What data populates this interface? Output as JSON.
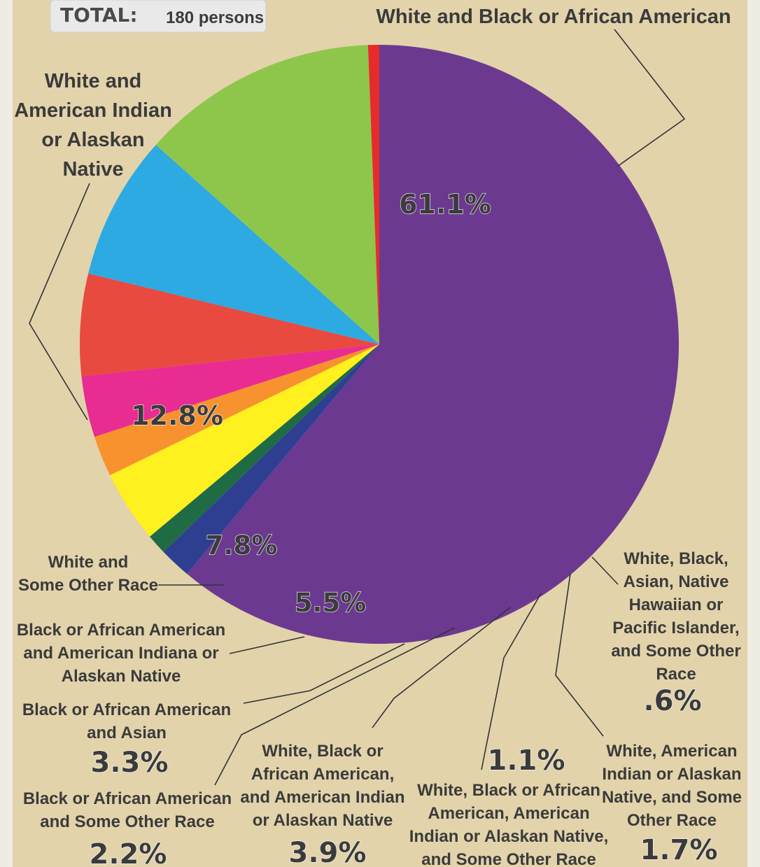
{
  "total": {
    "label": "TOTAL:",
    "value": "180 persons"
  },
  "colors": {
    "panel": "#e2d3ab",
    "page": "#efece3",
    "text": "#3b3b3b"
  },
  "chart_data": {
    "type": "pie",
    "start_angle_deg": -90,
    "slices": [
      {
        "value": 61.1,
        "pct_label": "61.1%",
        "color": "#6b3a90",
        "label_lines": [
          "White and Black or African American"
        ]
      },
      {
        "value": 1.7,
        "pct_label": "1.7%",
        "color": "#2e3f92",
        "label_lines": [
          "White, American",
          "Indian or Alaskan",
          "Native, and Some",
          "Other Race"
        ]
      },
      {
        "value": 1.1,
        "pct_label": "1.1%",
        "color": "#1f6b44",
        "label_lines": [
          "White, Black or African",
          "American, American",
          "Indian or Alaskan Native,",
          "and Some Other Race"
        ]
      },
      {
        "value": 3.9,
        "pct_label": "3.9%",
        "color": "#fff01f",
        "label_lines": [
          "White, Black or",
          "African American,",
          "and American Indian",
          "or Alaskan Native"
        ]
      },
      {
        "value": 2.2,
        "pct_label": "2.2%",
        "color": "#f7922e",
        "label_lines": [
          "Black or African American",
          "and Some Other Race"
        ]
      },
      {
        "value": 3.3,
        "pct_label": "3.3%",
        "color": "#e92c91",
        "label_lines": [
          "Black or African American",
          "and Asian"
        ]
      },
      {
        "value": 5.5,
        "pct_label": "5.5%",
        "color": "#e84a40",
        "label_lines": [
          "Black or African American",
          "and American Indiana or",
          "Alaskan Native"
        ]
      },
      {
        "value": 7.8,
        "pct_label": "7.8%",
        "color": "#2eaae2",
        "label_lines": [
          "White and",
          "Some Other Race"
        ]
      },
      {
        "value": 12.8,
        "pct_label": "12.8%",
        "color": "#8dc64b",
        "label_lines": [
          "White and",
          "American Indian",
          "or Alaskan",
          "Native"
        ]
      },
      {
        "value": 0.6,
        "pct_label": ".6%",
        "color": "#e62b2b",
        "label_lines": [
          "White, Black,",
          "Asian, Native",
          "Hawaiian or",
          "Pacific Islander,",
          "and Some Other",
          "Race"
        ]
      }
    ]
  }
}
